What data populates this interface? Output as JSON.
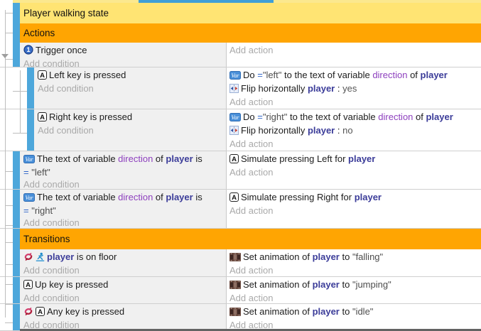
{
  "colors": {
    "group_header_bg": "#ffe473",
    "section_header_bg": "#ffa502",
    "selection_strip": "#4da7db",
    "top_bar": "#3f9fd7",
    "top_strip": "#fbe88e",
    "condition_bg": "#f0f0f0",
    "action_bg": "#ffffff"
  },
  "labels": {
    "add_condition": "Add condition",
    "add_action": "Add action"
  },
  "icon_names": {
    "once": "trigger-once-icon",
    "var": "variable-icon",
    "key": "keyboard-icon",
    "flip": "flip-horizontal-icon",
    "invert": "invert-condition-icon",
    "platformer": "platformer-behavior-icon",
    "anim": "animation-icon"
  },
  "rows": [
    {
      "type": "group",
      "label": "Player walking state",
      "height": 29
    },
    {
      "type": "section",
      "label": "Actions",
      "height": 27
    },
    {
      "type": "event",
      "height": 35,
      "indent": 0,
      "conditions": [
        [
          {
            "i": "once"
          },
          {
            "s": "plain",
            "v": "Trigger once"
          }
        ]
      ],
      "actions": []
    },
    {
      "type": "event",
      "height": 59,
      "indent": 1,
      "conditions": [
        [
          {
            "i": "key"
          },
          {
            "s": "plain",
            "v": "Left key is pressed"
          }
        ]
      ],
      "actions": [
        [
          {
            "i": "var"
          },
          {
            "s": "plain",
            "v": "Do "
          },
          {
            "s": "op",
            "v": "="
          },
          {
            "s": "str",
            "v": "\"left\""
          },
          {
            "s": "plain",
            "v": " to the text of variable "
          },
          {
            "s": "var",
            "v": "direction"
          },
          {
            "s": "plain",
            "v": " of "
          },
          {
            "s": "obj",
            "v": "player"
          }
        ],
        [
          {
            "i": "flip"
          },
          {
            "s": "plain",
            "v": "Flip horizontally "
          },
          {
            "s": "obj",
            "v": "player"
          },
          {
            "s": "plain",
            "v": " : "
          },
          {
            "s": "val",
            "v": "yes"
          }
        ]
      ]
    },
    {
      "type": "event",
      "height": 59,
      "indent": 1,
      "conditions": [
        [
          {
            "i": "key"
          },
          {
            "s": "plain",
            "v": "Right key is pressed"
          }
        ]
      ],
      "actions": [
        [
          {
            "i": "var"
          },
          {
            "s": "plain",
            "v": "Do "
          },
          {
            "s": "op",
            "v": "="
          },
          {
            "s": "str",
            "v": "\"right\""
          },
          {
            "s": "plain",
            "v": " to the text of variable "
          },
          {
            "s": "var",
            "v": "direction"
          },
          {
            "s": "plain",
            "v": " of "
          },
          {
            "s": "obj",
            "v": "player"
          }
        ],
        [
          {
            "i": "flip"
          },
          {
            "s": "plain",
            "v": "Flip horizontally "
          },
          {
            "s": "obj",
            "v": "player"
          },
          {
            "s": "plain",
            "v": " : "
          },
          {
            "s": "val",
            "v": "no"
          }
        ]
      ]
    },
    {
      "type": "event",
      "height": 54,
      "indent": 0,
      "conditions": [
        [
          {
            "i": "var"
          },
          {
            "s": "plain",
            "v": "The text of variable "
          },
          {
            "s": "var",
            "v": "direction"
          },
          {
            "s": "plain",
            "v": " of "
          },
          {
            "s": "obj",
            "v": "player"
          },
          {
            "s": "plain",
            "v": " is"
          }
        ],
        [
          {
            "s": "op",
            "v": "= "
          },
          {
            "s": "str",
            "v": "\"left\""
          }
        ]
      ],
      "actions": [
        [
          {
            "i": "key"
          },
          {
            "s": "plain",
            "v": "Simulate pressing Left for "
          },
          {
            "s": "obj",
            "v": "player"
          }
        ]
      ]
    },
    {
      "type": "event",
      "height": 55,
      "indent": 0,
      "conditions": [
        [
          {
            "i": "var"
          },
          {
            "s": "plain",
            "v": "The text of variable "
          },
          {
            "s": "var",
            "v": "direction"
          },
          {
            "s": "plain",
            "v": " of "
          },
          {
            "s": "obj",
            "v": "player"
          },
          {
            "s": "plain",
            "v": " is"
          }
        ],
        [
          {
            "s": "op",
            "v": "= "
          },
          {
            "s": "str",
            "v": "\"right\""
          }
        ]
      ],
      "actions": [
        [
          {
            "i": "key"
          },
          {
            "s": "plain",
            "v": "Simulate pressing Right for "
          },
          {
            "s": "obj",
            "v": "player"
          }
        ]
      ]
    },
    {
      "type": "section",
      "label": "Transitions",
      "height": 29
    },
    {
      "type": "event",
      "height": 39,
      "indent": 0,
      "conditions": [
        [
          {
            "i": "invert"
          },
          {
            "i": "platformer"
          },
          {
            "s": "obj",
            "v": "player"
          },
          {
            "s": "plain",
            "v": " is on floor"
          }
        ]
      ],
      "actions": [
        [
          {
            "i": "anim"
          },
          {
            "s": "plain",
            "v": "Set animation of "
          },
          {
            "s": "obj",
            "v": "player"
          },
          {
            "s": "plain",
            "v": " to "
          },
          {
            "s": "str",
            "v": "\"falling\""
          }
        ]
      ]
    },
    {
      "type": "event",
      "height": 38,
      "indent": 0,
      "conditions": [
        [
          {
            "i": "key"
          },
          {
            "s": "plain",
            "v": "Up key is pressed"
          }
        ]
      ],
      "actions": [
        [
          {
            "i": "anim"
          },
          {
            "s": "plain",
            "v": "Set animation of "
          },
          {
            "s": "obj",
            "v": "player"
          },
          {
            "s": "plain",
            "v": " to "
          },
          {
            "s": "str",
            "v": "\"jumping\""
          }
        ]
      ]
    },
    {
      "type": "event",
      "height": 38,
      "indent": 0,
      "conditions": [
        [
          {
            "i": "invert"
          },
          {
            "i": "key"
          },
          {
            "s": "plain",
            "v": "Any key is pressed"
          }
        ]
      ],
      "actions": [
        [
          {
            "i": "anim"
          },
          {
            "s": "plain",
            "v": "Set animation of "
          },
          {
            "s": "obj",
            "v": "player"
          },
          {
            "s": "plain",
            "v": " to "
          },
          {
            "s": "str",
            "v": "\"idle\""
          }
        ]
      ]
    }
  ]
}
